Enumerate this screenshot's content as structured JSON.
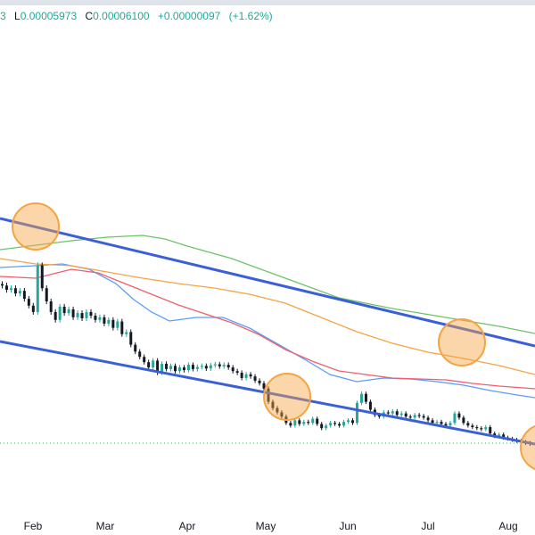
{
  "header": {
    "open_tail": "3",
    "low_label": "L",
    "low_value": "0.00005973",
    "close_label": "C",
    "close_value": "0.00006100",
    "change": "+0.00000097",
    "change_pct": "(+1.62%)"
  },
  "colors": {
    "candle_up": "#26a69a",
    "candle_down": "#131722",
    "trend_channel": "#3a5fd8",
    "ma_fast": "#5b9bff",
    "ma_mid": "#ef5f6b",
    "ma_slow": "#f5a443",
    "ma_long": "#6cc46a",
    "highlight": "#f5a443",
    "price_line": "#4caf50"
  },
  "chart_data": {
    "type": "candlestick",
    "x_tick_labels": [
      "Feb",
      "Mar",
      "Apr",
      "May",
      "Jun",
      "Jul",
      "Aug"
    ],
    "y_range": [
      4.8e-05,
      0.00014
    ],
    "last_close": 6.1e-05,
    "candles_close": [
      9.1e-05,
      9.02e-05,
      9.05e-05,
      8.95e-05,
      9e-05,
      8.85e-05,
      8.72e-05,
      8.6e-05,
      9.48e-05,
      9.05e-05,
      8.8e-05,
      8.6e-05,
      8.45e-05,
      8.7e-05,
      8.58e-05,
      8.65e-05,
      8.5e-05,
      8.58e-05,
      8.48e-05,
      8.6e-05,
      8.53e-05,
      8.45e-05,
      8.5e-05,
      8.38e-05,
      8.45e-05,
      8.3e-05,
      8.42e-05,
      8.18e-05,
      8.22e-05,
      7.98e-05,
      7.85e-05,
      7.75e-05,
      7.65e-05,
      7.55e-05,
      7.68e-05,
      7.45e-05,
      7.62e-05,
      7.52e-05,
      7.58e-05,
      7.48e-05,
      7.55e-05,
      7.5e-05,
      7.6e-05,
      7.52e-05,
      7.56e-05,
      7.58e-05,
      7.53e-05,
      7.59e-05,
      7.61e-05,
      7.57e-05,
      7.6e-05,
      7.55e-05,
      7.48e-05,
      7.45e-05,
      7.35e-05,
      7.42e-05,
      7.38e-05,
      7.3e-05,
      7.25e-05,
      7.15e-05,
      6.9e-05,
      6.78e-05,
      6.7e-05,
      6.62e-05,
      6.5e-05,
      6.45e-05,
      6.55e-05,
      6.48e-05,
      6.52e-05,
      6.5e-05,
      6.58e-05,
      6.48e-05,
      6.4e-05,
      6.45e-05,
      6.5e-05,
      6.48e-05,
      6.45e-05,
      6.52e-05,
      6.55e-05,
      6.5e-05,
      6.88e-05,
      7.05e-05,
      6.9e-05,
      6.75e-05,
      6.65e-05,
      6.62e-05,
      6.7e-05,
      6.68e-05,
      6.72e-05,
      6.65e-05,
      6.68e-05,
      6.62e-05,
      6.6e-05,
      6.65e-05,
      6.63e-05,
      6.6e-05,
      6.55e-05,
      6.5e-05,
      6.52e-05,
      6.48e-05,
      6.45e-05,
      6.5e-05,
      6.68e-05,
      6.6e-05,
      6.5e-05,
      6.45e-05,
      6.42e-05,
      6.4e-05,
      6.38e-05,
      6.42e-05,
      6.3e-05,
      6.25e-05,
      6.28e-05,
      6.22e-05,
      6.2e-05,
      6.18e-05,
      6.16e-05,
      6.14e-05,
      6.12e-05,
      6.1e-05
    ],
    "moving_averages": [
      {
        "name": "ma-fast"
      },
      {
        "name": "ma-mid"
      },
      {
        "name": "ma-slow"
      },
      {
        "name": "ma-long"
      }
    ]
  }
}
